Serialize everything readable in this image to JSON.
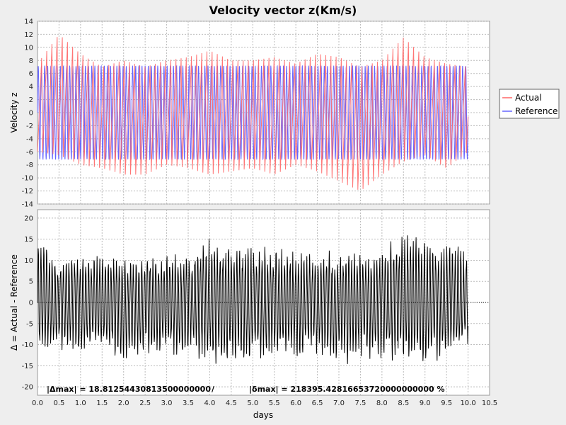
{
  "chart_data": [
    {
      "type": "line",
      "title": "Velocity vector z(Km/s)",
      "xlabel": "",
      "ylabel": "Velocity z",
      "xlim": [
        0.0,
        10.5
      ],
      "ylim": [
        -14,
        14
      ],
      "x_ticks": [
        "0.0",
        "0.5",
        "1.0",
        "1.5",
        "2.0",
        "2.5",
        "3.0",
        "3.5",
        "4.0",
        "4.5",
        "5.0",
        "5.5",
        "6.0",
        "6.5",
        "7.0",
        "7.5",
        "8.0",
        "8.5",
        "9.0",
        "9.5",
        "10.0",
        "10.5"
      ],
      "y_ticks": [
        "-14",
        "-12",
        "-10",
        "-8",
        "-6",
        "-4",
        "-2",
        "0",
        "2",
        "4",
        "6",
        "8",
        "10",
        "12",
        "14"
      ],
      "grid": true,
      "legend_position": "right",
      "series": [
        {
          "name": "Actual",
          "color": "#ff6666",
          "x_range": [
            0.0,
            10.0
          ],
          "approx_envelope": {
            "x": [
              0.0,
              0.5,
              1.0,
              1.5,
              2.0,
              2.5,
              3.0,
              3.5,
              4.0,
              4.5,
              5.0,
              5.5,
              6.0,
              6.5,
              7.0,
              7.5,
              8.0,
              8.5,
              9.0,
              9.5,
              10.0
            ],
            "max": [
              7.5,
              12.0,
              9.0,
              7.0,
              8.0,
              7.0,
              8.0,
              8.5,
              9.5,
              8.0,
              8.0,
              8.5,
              7.5,
              9.0,
              8.5,
              7.0,
              8.0,
              11.5,
              8.5,
              7.5,
              7.0
            ],
            "min": [
              -6.0,
              -6.5,
              -8.0,
              -8.5,
              -9.5,
              -9.5,
              -8.0,
              -8.5,
              -9.5,
              -9.0,
              -8.5,
              -9.5,
              -8.0,
              -9.0,
              -10.5,
              -12.0,
              -9.5,
              -7.5,
              -6.5,
              -8.5,
              -6.0
            ]
          }
        },
        {
          "name": "Reference",
          "color": "#6666ff",
          "x_range": [
            0.0,
            10.0
          ],
          "amplitude": 7.2,
          "period_days": 0.073
        }
      ]
    },
    {
      "type": "line",
      "title": "",
      "xlabel": "days",
      "ylabel": "Δ = Actual - Reference",
      "xlim": [
        0.0,
        10.5
      ],
      "ylim": [
        -22,
        22
      ],
      "x_ticks": [
        "0.0",
        "0.5",
        "1.0",
        "1.5",
        "2.0",
        "2.5",
        "3.0",
        "3.5",
        "4.0",
        "4.5",
        "5.0",
        "5.5",
        "6.0",
        "6.5",
        "7.0",
        "7.5",
        "8.0",
        "8.5",
        "9.0",
        "9.5",
        "10.0",
        "10.5"
      ],
      "y_ticks": [
        "-20",
        "-15",
        "-10",
        "-5",
        "0",
        "5",
        "10",
        "15",
        "20"
      ],
      "grid": true,
      "series": [
        {
          "name": "",
          "color": "#000000",
          "x_range": [
            0.0,
            10.0
          ],
          "approx_envelope": {
            "x": [
              0.0,
              0.5,
              1.0,
              1.5,
              2.0,
              2.5,
              3.0,
              3.5,
              4.0,
              4.5,
              5.0,
              5.5,
              6.0,
              6.5,
              7.0,
              7.5,
              8.0,
              8.5,
              9.0,
              9.5,
              10.0
            ],
            "max": [
              15.5,
              11.0,
              12.0,
              12.0,
              11.0,
              12.0,
              13.0,
              12.0,
              17.0,
              13.0,
              14.0,
              14.0,
              13.0,
              12.0,
              13.0,
              12.0,
              13.0,
              18.5,
              15.0,
              15.0,
              13.0
            ],
            "min": [
              -12.5,
              -12.0,
              -13.0,
              -12.0,
              -14.5,
              -13.0,
              -13.0,
              -13.0,
              -15.0,
              -15.5,
              -14.0,
              -13.0,
              -14.0,
              -14.0,
              -15.5,
              -14.0,
              -14.0,
              -15.0,
              -15.0,
              -14.0,
              -11.0
            ]
          }
        }
      ],
      "reference_line": {
        "y": 0,
        "style": "dotted"
      }
    }
  ],
  "legend": {
    "items": [
      {
        "label": "Actual",
        "color": "#ff6666"
      },
      {
        "label": "Reference",
        "color": "#6666ff"
      }
    ]
  },
  "stats": {
    "delta_max": "|Δmax| = 18.81254430813500000000",
    "separator": "/",
    "rel_max": "|δmax| = 218395.42816653720000000000 %"
  }
}
